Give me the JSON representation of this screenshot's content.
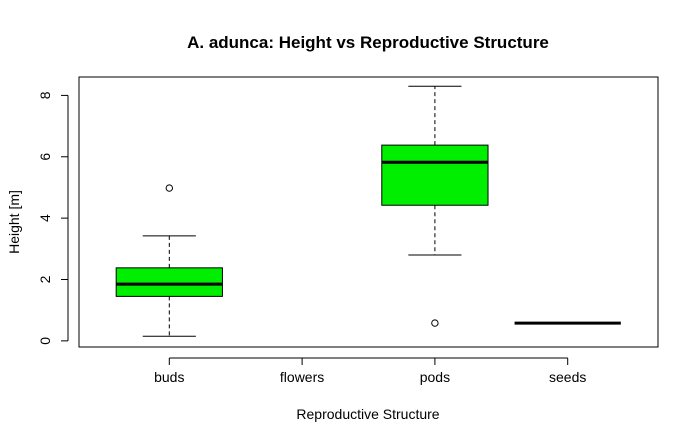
{
  "chart_data": {
    "type": "boxplot",
    "title": "A. adunca: Height vs Reproductive Structure",
    "xlabel": "Reproductive Structure",
    "ylabel": "Height [m]",
    "categories": [
      "buds",
      "flowers",
      "pods",
      "seeds"
    ],
    "ylim": [
      -0.2,
      8.6
    ],
    "yticks": [
      0,
      2,
      4,
      6,
      8
    ],
    "box_color": "#00ee00",
    "grid": false,
    "boxes": [
      {
        "category": "buds",
        "min": 0.15,
        "q1": 1.45,
        "median": 1.85,
        "q3": 2.38,
        "max": 3.42,
        "outliers": [
          4.98
        ]
      },
      {
        "category": "flowers",
        "empty": true
      },
      {
        "category": "pods",
        "min": 2.8,
        "q1": 4.42,
        "median": 5.82,
        "q3": 6.38,
        "max": 8.3,
        "outliers": [
          0.58
        ]
      },
      {
        "category": "seeds",
        "min": 0.58,
        "q1": 0.58,
        "median": 0.58,
        "q3": 0.58,
        "max": 0.58,
        "outliers": []
      }
    ]
  }
}
